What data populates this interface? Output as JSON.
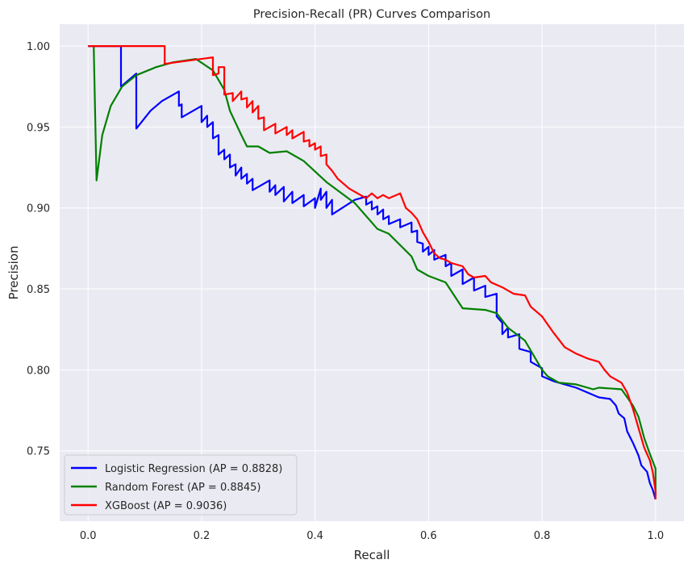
{
  "chart_data": {
    "type": "line",
    "title": "Precision-Recall (PR) Curves Comparison",
    "xlabel": "Recall",
    "ylabel": "Precision",
    "xlim": [
      -0.05,
      1.05
    ],
    "ylim": [
      0.7065,
      1.0135
    ],
    "xticks": [
      0.0,
      0.2,
      0.4,
      0.6,
      0.8,
      1.0
    ],
    "xtick_labels": [
      "0.0",
      "0.2",
      "0.4",
      "0.6",
      "0.8",
      "1.0"
    ],
    "yticks": [
      0.75,
      0.8,
      0.85,
      0.9,
      0.95,
      1.0
    ],
    "ytick_labels": [
      "0.75",
      "0.80",
      "0.85",
      "0.90",
      "0.95",
      "1.00"
    ],
    "grid": true,
    "background": "#eaeaf2",
    "legend_position": "lower-left",
    "series": [
      {
        "name": "Logistic Regression (AP = 0.8828)",
        "color": "#0000ff",
        "points": [
          [
            0.0,
            1.0
          ],
          [
            0.058,
            1.0
          ],
          [
            0.058,
            0.975
          ],
          [
            0.085,
            0.983
          ],
          [
            0.085,
            0.949
          ],
          [
            0.11,
            0.96
          ],
          [
            0.13,
            0.966
          ],
          [
            0.16,
            0.972
          ],
          [
            0.16,
            0.963
          ],
          [
            0.165,
            0.964
          ],
          [
            0.165,
            0.956
          ],
          [
            0.2,
            0.963
          ],
          [
            0.2,
            0.953
          ],
          [
            0.21,
            0.957
          ],
          [
            0.21,
            0.95
          ],
          [
            0.22,
            0.953
          ],
          [
            0.22,
            0.943
          ],
          [
            0.23,
            0.945
          ],
          [
            0.23,
            0.933
          ],
          [
            0.24,
            0.936
          ],
          [
            0.24,
            0.93
          ],
          [
            0.25,
            0.933
          ],
          [
            0.25,
            0.925
          ],
          [
            0.26,
            0.927
          ],
          [
            0.26,
            0.92
          ],
          [
            0.27,
            0.925
          ],
          [
            0.27,
            0.918
          ],
          [
            0.28,
            0.921
          ],
          [
            0.28,
            0.915
          ],
          [
            0.29,
            0.918
          ],
          [
            0.29,
            0.911
          ],
          [
            0.32,
            0.917
          ],
          [
            0.32,
            0.91
          ],
          [
            0.33,
            0.914
          ],
          [
            0.33,
            0.908
          ],
          [
            0.345,
            0.913
          ],
          [
            0.345,
            0.904
          ],
          [
            0.36,
            0.91
          ],
          [
            0.36,
            0.903
          ],
          [
            0.38,
            0.908
          ],
          [
            0.38,
            0.901
          ],
          [
            0.4,
            0.906
          ],
          [
            0.4,
            0.9
          ],
          [
            0.41,
            0.912
          ],
          [
            0.41,
            0.905
          ],
          [
            0.42,
            0.91
          ],
          [
            0.42,
            0.9
          ],
          [
            0.43,
            0.905
          ],
          [
            0.43,
            0.896
          ],
          [
            0.47,
            0.905
          ],
          [
            0.49,
            0.907
          ],
          [
            0.49,
            0.902
          ],
          [
            0.5,
            0.904
          ],
          [
            0.5,
            0.899
          ],
          [
            0.51,
            0.901
          ],
          [
            0.51,
            0.896
          ],
          [
            0.52,
            0.899
          ],
          [
            0.52,
            0.893
          ],
          [
            0.53,
            0.895
          ],
          [
            0.53,
            0.89
          ],
          [
            0.55,
            0.893
          ],
          [
            0.55,
            0.888
          ],
          [
            0.57,
            0.891
          ],
          [
            0.57,
            0.885
          ],
          [
            0.58,
            0.886
          ],
          [
            0.58,
            0.879
          ],
          [
            0.59,
            0.878
          ],
          [
            0.59,
            0.873
          ],
          [
            0.6,
            0.876
          ],
          [
            0.6,
            0.871
          ],
          [
            0.61,
            0.874
          ],
          [
            0.61,
            0.868
          ],
          [
            0.63,
            0.871
          ],
          [
            0.63,
            0.864
          ],
          [
            0.64,
            0.866
          ],
          [
            0.64,
            0.858
          ],
          [
            0.66,
            0.862
          ],
          [
            0.66,
            0.853
          ],
          [
            0.68,
            0.857
          ],
          [
            0.68,
            0.849
          ],
          [
            0.7,
            0.852
          ],
          [
            0.7,
            0.845
          ],
          [
            0.72,
            0.847
          ],
          [
            0.72,
            0.833
          ],
          [
            0.73,
            0.829
          ],
          [
            0.73,
            0.822
          ],
          [
            0.74,
            0.826
          ],
          [
            0.74,
            0.82
          ],
          [
            0.76,
            0.822
          ],
          [
            0.76,
            0.813
          ],
          [
            0.78,
            0.811
          ],
          [
            0.78,
            0.805
          ],
          [
            0.8,
            0.801
          ],
          [
            0.8,
            0.796
          ],
          [
            0.82,
            0.793
          ],
          [
            0.84,
            0.791
          ],
          [
            0.86,
            0.789
          ],
          [
            0.88,
            0.786
          ],
          [
            0.9,
            0.783
          ],
          [
            0.92,
            0.782
          ],
          [
            0.93,
            0.778
          ],
          [
            0.935,
            0.773
          ],
          [
            0.945,
            0.77
          ],
          [
            0.95,
            0.762
          ],
          [
            0.96,
            0.755
          ],
          [
            0.97,
            0.747
          ],
          [
            0.975,
            0.741
          ],
          [
            0.985,
            0.737
          ],
          [
            0.99,
            0.73
          ],
          [
            0.995,
            0.726
          ],
          [
            1.0,
            0.72
          ]
        ]
      },
      {
        "name": "Random Forest (AP = 0.8845)",
        "color": "#008000",
        "points": [
          [
            0.01,
            1.0
          ],
          [
            0.015,
            0.917
          ],
          [
            0.025,
            0.945
          ],
          [
            0.04,
            0.963
          ],
          [
            0.06,
            0.975
          ],
          [
            0.085,
            0.982
          ],
          [
            0.12,
            0.987
          ],
          [
            0.15,
            0.99
          ],
          [
            0.19,
            0.992
          ],
          [
            0.22,
            0.985
          ],
          [
            0.24,
            0.973
          ],
          [
            0.25,
            0.96
          ],
          [
            0.27,
            0.945
          ],
          [
            0.28,
            0.938
          ],
          [
            0.3,
            0.938
          ],
          [
            0.32,
            0.934
          ],
          [
            0.35,
            0.935
          ],
          [
            0.38,
            0.929
          ],
          [
            0.42,
            0.916
          ],
          [
            0.47,
            0.903
          ],
          [
            0.51,
            0.887
          ],
          [
            0.53,
            0.884
          ],
          [
            0.57,
            0.87
          ],
          [
            0.58,
            0.862
          ],
          [
            0.6,
            0.858
          ],
          [
            0.63,
            0.854
          ],
          [
            0.66,
            0.838
          ],
          [
            0.7,
            0.837
          ],
          [
            0.72,
            0.835
          ],
          [
            0.74,
            0.826
          ],
          [
            0.77,
            0.818
          ],
          [
            0.8,
            0.8
          ],
          [
            0.81,
            0.796
          ],
          [
            0.83,
            0.792
          ],
          [
            0.86,
            0.791
          ],
          [
            0.89,
            0.788
          ],
          [
            0.9,
            0.789
          ],
          [
            0.94,
            0.788
          ],
          [
            0.96,
            0.778
          ],
          [
            0.97,
            0.771
          ],
          [
            0.98,
            0.758
          ],
          [
            0.99,
            0.748
          ],
          [
            1.0,
            0.739
          ],
          [
            1.0,
            0.722
          ]
        ]
      },
      {
        "name": "XGBoost (AP = 0.9036)",
        "color": "#ff0000",
        "points": [
          [
            0.0,
            1.0
          ],
          [
            0.135,
            1.0
          ],
          [
            0.135,
            0.989
          ],
          [
            0.155,
            0.99
          ],
          [
            0.22,
            0.993
          ],
          [
            0.22,
            0.982
          ],
          [
            0.23,
            0.983
          ],
          [
            0.23,
            0.987
          ],
          [
            0.24,
            0.987
          ],
          [
            0.24,
            0.97
          ],
          [
            0.255,
            0.971
          ],
          [
            0.255,
            0.966
          ],
          [
            0.27,
            0.972
          ],
          [
            0.27,
            0.967
          ],
          [
            0.28,
            0.968
          ],
          [
            0.28,
            0.962
          ],
          [
            0.29,
            0.966
          ],
          [
            0.29,
            0.959
          ],
          [
            0.3,
            0.963
          ],
          [
            0.3,
            0.955
          ],
          [
            0.31,
            0.956
          ],
          [
            0.31,
            0.948
          ],
          [
            0.33,
            0.952
          ],
          [
            0.33,
            0.946
          ],
          [
            0.35,
            0.95
          ],
          [
            0.35,
            0.945
          ],
          [
            0.36,
            0.948
          ],
          [
            0.36,
            0.943
          ],
          [
            0.38,
            0.947
          ],
          [
            0.38,
            0.941
          ],
          [
            0.39,
            0.942
          ],
          [
            0.39,
            0.938
          ],
          [
            0.4,
            0.94
          ],
          [
            0.4,
            0.936
          ],
          [
            0.41,
            0.938
          ],
          [
            0.41,
            0.932
          ],
          [
            0.42,
            0.933
          ],
          [
            0.42,
            0.927
          ],
          [
            0.43,
            0.923
          ],
          [
            0.44,
            0.918
          ],
          [
            0.45,
            0.915
          ],
          [
            0.46,
            0.912
          ],
          [
            0.47,
            0.91
          ],
          [
            0.48,
            0.908
          ],
          [
            0.49,
            0.906
          ],
          [
            0.5,
            0.909
          ],
          [
            0.51,
            0.906
          ],
          [
            0.52,
            0.908
          ],
          [
            0.53,
            0.906
          ],
          [
            0.55,
            0.909
          ],
          [
            0.56,
            0.9
          ],
          [
            0.57,
            0.897
          ],
          [
            0.58,
            0.893
          ],
          [
            0.59,
            0.885
          ],
          [
            0.6,
            0.879
          ],
          [
            0.61,
            0.872
          ],
          [
            0.62,
            0.869
          ],
          [
            0.63,
            0.868
          ],
          [
            0.64,
            0.866
          ],
          [
            0.66,
            0.864
          ],
          [
            0.67,
            0.859
          ],
          [
            0.68,
            0.857
          ],
          [
            0.7,
            0.858
          ],
          [
            0.71,
            0.854
          ],
          [
            0.73,
            0.851
          ],
          [
            0.75,
            0.847
          ],
          [
            0.77,
            0.846
          ],
          [
            0.78,
            0.839
          ],
          [
            0.8,
            0.833
          ],
          [
            0.82,
            0.823
          ],
          [
            0.84,
            0.814
          ],
          [
            0.86,
            0.81
          ],
          [
            0.88,
            0.807
          ],
          [
            0.9,
            0.805
          ],
          [
            0.91,
            0.8
          ],
          [
            0.92,
            0.796
          ],
          [
            0.94,
            0.792
          ],
          [
            0.95,
            0.786
          ],
          [
            0.96,
            0.776
          ],
          [
            0.97,
            0.764
          ],
          [
            0.98,
            0.752
          ],
          [
            0.99,
            0.744
          ],
          [
            0.995,
            0.737
          ],
          [
            1.0,
            0.725
          ],
          [
            1.0,
            0.72
          ]
        ]
      }
    ]
  }
}
